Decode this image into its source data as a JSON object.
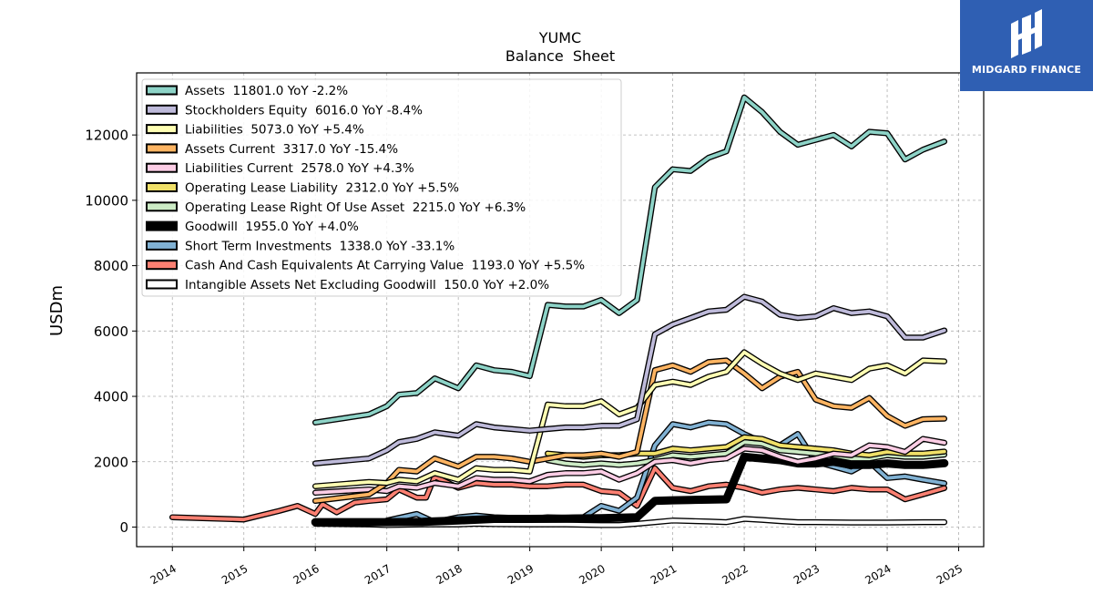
{
  "logo": {
    "brand": "MIDGARD FINANCE",
    "color": "#2f5fb3"
  },
  "chart_data": {
    "type": "line",
    "title": "YUMC",
    "subtitle": "Balance  Sheet",
    "ylabel": "USDm",
    "xlabel": "",
    "xlim": [
      2013.5,
      2025.35
    ],
    "ylim": [
      -600,
      13900
    ],
    "yticks": [
      0,
      2000,
      4000,
      6000,
      8000,
      10000,
      12000
    ],
    "xticks": [
      2014,
      2015,
      2016,
      2017,
      2018,
      2019,
      2020,
      2021,
      2022,
      2023,
      2024,
      2025
    ],
    "grid": true,
    "legend_position": "top-left",
    "series": [
      {
        "name": "Assets  11801.0 YoY -2.2%",
        "color": "#8dd3c7",
        "x": [
          2016.0,
          2016.75,
          2017.0,
          2017.17,
          2017.42,
          2017.67,
          2018.0,
          2018.25,
          2018.5,
          2018.75,
          2019.0,
          2019.25,
          2019.5,
          2019.75,
          2020.0,
          2020.25,
          2020.5,
          2020.75,
          2021.0,
          2021.25,
          2021.5,
          2021.75,
          2022.0,
          2022.25,
          2022.5,
          2022.75,
          2023.0,
          2023.25,
          2023.5,
          2023.75,
          2024.0,
          2024.25,
          2024.5,
          2024.8
        ],
        "y": [
          3200,
          3450,
          3700,
          4050,
          4100,
          4550,
          4250,
          4950,
          4800,
          4750,
          4620,
          6800,
          6750,
          6750,
          6950,
          6550,
          6950,
          10400,
          10950,
          10900,
          11300,
          11500,
          13150,
          12700,
          12100,
          11700,
          11850,
          12000,
          11650,
          12100,
          12050,
          11250,
          11550,
          11801
        ]
      },
      {
        "name": "Stockholders Equity  6016.0 YoY -8.4%",
        "color": "#bebada",
        "x": [
          2016.0,
          2016.75,
          2017.0,
          2017.17,
          2017.42,
          2017.67,
          2018.0,
          2018.25,
          2018.5,
          2018.75,
          2019.0,
          2019.25,
          2019.5,
          2019.75,
          2020.0,
          2020.25,
          2020.5,
          2020.75,
          2021.0,
          2021.25,
          2021.5,
          2021.75,
          2022.0,
          2022.25,
          2022.5,
          2022.75,
          2023.0,
          2023.25,
          2023.5,
          2023.75,
          2024.0,
          2024.25,
          2024.5,
          2024.8
        ],
        "y": [
          1950,
          2100,
          2350,
          2600,
          2700,
          2900,
          2800,
          3150,
          3050,
          3000,
          2950,
          3000,
          3050,
          3050,
          3100,
          3100,
          3300,
          5900,
          6200,
          6400,
          6600,
          6650,
          7050,
          6900,
          6500,
          6400,
          6450,
          6700,
          6550,
          6600,
          6450,
          5800,
          5800,
          6016
        ]
      },
      {
        "name": "Liabilities  5073.0 YoY +5.4%",
        "color": "#ffffb3",
        "x": [
          2016.0,
          2016.75,
          2017.0,
          2017.17,
          2017.42,
          2017.67,
          2018.0,
          2018.25,
          2018.5,
          2018.75,
          2019.0,
          2019.25,
          2019.5,
          2019.75,
          2020.0,
          2020.25,
          2020.5,
          2020.75,
          2021.0,
          2021.25,
          2021.5,
          2021.75,
          2022.0,
          2022.25,
          2022.5,
          2022.75,
          2023.0,
          2023.25,
          2023.5,
          2023.75,
          2024.0,
          2024.25,
          2024.5,
          2024.8
        ],
        "y": [
          1250,
          1380,
          1350,
          1450,
          1400,
          1650,
          1450,
          1800,
          1750,
          1750,
          1700,
          3750,
          3700,
          3700,
          3850,
          3450,
          3650,
          4350,
          4450,
          4350,
          4600,
          4750,
          5350,
          5000,
          4700,
          4500,
          4700,
          4600,
          4500,
          4850,
          4950,
          4700,
          5100,
          5073
        ]
      },
      {
        "name": "Assets Current  3317.0 YoY -15.4%",
        "color": "#fdb462",
        "x": [
          2016.0,
          2016.75,
          2017.0,
          2017.17,
          2017.42,
          2017.67,
          2018.0,
          2018.25,
          2018.5,
          2018.75,
          2019.0,
          2019.25,
          2019.5,
          2019.75,
          2020.0,
          2020.25,
          2020.5,
          2020.75,
          2021.0,
          2021.25,
          2021.5,
          2021.75,
          2022.0,
          2022.25,
          2022.5,
          2022.75,
          2023.0,
          2023.25,
          2023.5,
          2023.75,
          2024.0,
          2024.25,
          2024.5,
          2024.8
        ],
        "y": [
          800,
          1000,
          1350,
          1750,
          1700,
          2100,
          1850,
          2150,
          2150,
          2100,
          2000,
          2100,
          2200,
          2200,
          2250,
          2150,
          2300,
          4800,
          4950,
          4750,
          5050,
          5100,
          4700,
          4250,
          4600,
          4750,
          3900,
          3700,
          3650,
          3950,
          3400,
          3100,
          3300,
          3317
        ]
      },
      {
        "name": "Liabilities Current  2578.0 YoY +4.3%",
        "color": "#fccde5",
        "x": [
          2016.0,
          2016.75,
          2017.0,
          2017.17,
          2017.42,
          2017.67,
          2018.0,
          2018.25,
          2018.5,
          2018.75,
          2019.0,
          2019.25,
          2019.5,
          2019.75,
          2020.0,
          2020.25,
          2020.5,
          2020.75,
          2021.0,
          2021.25,
          2021.5,
          2021.75,
          2022.0,
          2022.25,
          2022.5,
          2022.75,
          2023.0,
          2023.25,
          2023.5,
          2023.75,
          2024.0,
          2024.25,
          2024.5,
          2024.8
        ],
        "y": [
          1050,
          1150,
          1100,
          1250,
          1200,
          1350,
          1250,
          1500,
          1450,
          1450,
          1400,
          1600,
          1650,
          1650,
          1700,
          1450,
          1650,
          2000,
          2050,
          1950,
          2050,
          2100,
          2400,
          2350,
          2150,
          2000,
          2100,
          2250,
          2200,
          2500,
          2450,
          2300,
          2700,
          2578
        ]
      },
      {
        "name": "Operating Lease Liability  2312.0 YoY +5.5%",
        "color": "#f0e068",
        "x": [
          2019.25,
          2019.5,
          2019.75,
          2020.0,
          2020.25,
          2020.5,
          2020.75,
          2021.0,
          2021.25,
          2021.5,
          2021.75,
          2022.0,
          2022.25,
          2022.5,
          2022.75,
          2023.0,
          2023.25,
          2023.5,
          2023.75,
          2024.0,
          2024.25,
          2024.5,
          2024.8
        ],
        "y": [
          2250,
          2200,
          2150,
          2200,
          2200,
          2250,
          2250,
          2400,
          2350,
          2400,
          2450,
          2750,
          2700,
          2500,
          2450,
          2400,
          2350,
          2250,
          2200,
          2300,
          2250,
          2250,
          2312
        ]
      },
      {
        "name": "Operating Lease Right Of Use Asset  2215.0 YoY +6.3%",
        "color": "#ccebc5",
        "x": [
          2019.25,
          2019.5,
          2019.75,
          2020.0,
          2020.25,
          2020.5,
          2020.75,
          2021.0,
          2021.25,
          2021.5,
          2021.75,
          2022.0,
          2022.25,
          2022.5,
          2022.75,
          2023.0,
          2023.25,
          2023.5,
          2023.75,
          2024.0,
          2024.25,
          2024.5,
          2024.8
        ],
        "y": [
          2050,
          1950,
          1900,
          1950,
          1900,
          1950,
          2050,
          2200,
          2150,
          2200,
          2250,
          2600,
          2550,
          2350,
          2300,
          2250,
          2200,
          2100,
          2100,
          2200,
          2150,
          2150,
          2215
        ]
      },
      {
        "name": "Goodwill  1955.0 YoY +4.0%",
        "color": "#000000",
        "x": [
          2016.0,
          2016.75,
          2017.0,
          2017.5,
          2018.0,
          2018.5,
          2019.0,
          2019.5,
          2020.0,
          2020.5,
          2020.75,
          2021.0,
          2021.25,
          2021.5,
          2021.75,
          2022.0,
          2022.25,
          2022.5,
          2022.75,
          2023.0,
          2023.25,
          2023.5,
          2023.75,
          2024.0,
          2024.25,
          2024.5,
          2024.8
        ],
        "y": [
          150,
          150,
          150,
          160,
          200,
          250,
          250,
          260,
          270,
          300,
          800,
          820,
          830,
          840,
          850,
          2150,
          2100,
          2050,
          1950,
          1950,
          2000,
          1900,
          1900,
          1950,
          1900,
          1900,
          1955
        ]
      },
      {
        "name": "Short Term Investments  1338.0 YoY -33.1%",
        "color": "#80b1d3",
        "x": [
          2017.0,
          2017.42,
          2017.67,
          2018.0,
          2018.25,
          2018.5,
          2018.75,
          2019.0,
          2019.25,
          2019.5,
          2019.75,
          2020.0,
          2020.25,
          2020.5,
          2020.75,
          2021.0,
          2021.25,
          2021.5,
          2021.75,
          2022.0,
          2022.25,
          2022.5,
          2022.75,
          2023.0,
          2023.25,
          2023.5,
          2023.75,
          2024.0,
          2024.25,
          2024.5,
          2024.8
        ],
        "y": [
          200,
          400,
          150,
          300,
          350,
          300,
          280,
          250,
          300,
          280,
          300,
          650,
          500,
          900,
          2500,
          3150,
          3050,
          3200,
          3150,
          2850,
          2600,
          2500,
          2850,
          2000,
          1850,
          1700,
          2000,
          1500,
          1550,
          1450,
          1338
        ]
      },
      {
        "name": "Cash And Cash Equivalents At Carrying Value  1193.0 YoY +5.5%",
        "color": "#fb8072",
        "x": [
          2014.0,
          2015.0,
          2015.5,
          2015.75,
          2016.0,
          2016.1,
          2016.3,
          2016.55,
          2016.75,
          2017.0,
          2017.17,
          2017.42,
          2017.55,
          2017.67,
          2018.0,
          2018.25,
          2018.5,
          2018.75,
          2019.0,
          2019.25,
          2019.5,
          2019.75,
          2020.0,
          2020.25,
          2020.5,
          2020.75,
          2021.0,
          2021.25,
          2021.5,
          2021.75,
          2022.0,
          2022.25,
          2022.5,
          2022.75,
          2023.0,
          2023.25,
          2023.5,
          2023.75,
          2024.0,
          2024.25,
          2024.5,
          2024.8
        ],
        "y": [
          300,
          230,
          500,
          650,
          400,
          700,
          450,
          750,
          800,
          850,
          1150,
          900,
          900,
          1550,
          1200,
          1350,
          1300,
          1300,
          1250,
          1250,
          1300,
          1300,
          1100,
          1050,
          650,
          1800,
          1200,
          1100,
          1250,
          1300,
          1200,
          1050,
          1150,
          1200,
          1150,
          1100,
          1200,
          1150,
          1150,
          850,
          1000,
          1193
        ]
      },
      {
        "name": "Intangible Assets Net Excluding Goodwill  150.0 YoY +2.0%",
        "color": "#ffffff",
        "x": [
          2016.0,
          2016.75,
          2017.0,
          2017.5,
          2018.0,
          2018.25,
          2018.5,
          2019.0,
          2019.5,
          2020.0,
          2020.25,
          2020.5,
          2020.75,
          2021.0,
          2021.5,
          2021.75,
          2022.0,
          2022.25,
          2022.5,
          2022.75,
          2023.0,
          2023.5,
          2024.0,
          2024.5,
          2024.8
        ],
        "y": [
          100,
          80,
          60,
          80,
          80,
          100,
          90,
          80,
          80,
          60,
          60,
          100,
          150,
          200,
          170,
          150,
          250,
          220,
          180,
          150,
          150,
          140,
          140,
          150,
          150
        ]
      }
    ]
  }
}
